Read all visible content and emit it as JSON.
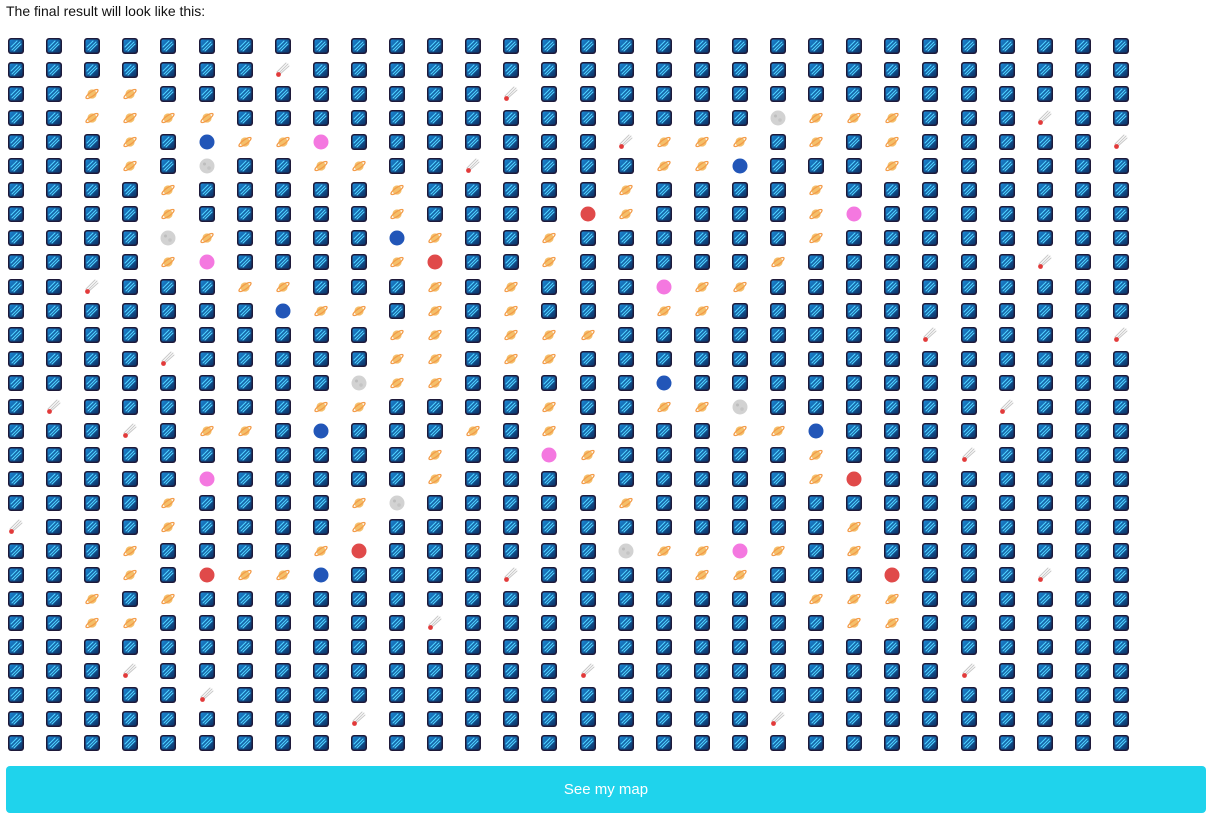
{
  "intro_text": "The final result will look like this:",
  "button_label": "See my map",
  "grid": {
    "columns": 30,
    "rows": 30,
    "default_tile": "space-tile",
    "legend": {
      "S": "space-tile",
      "P": "ringed-planet",
      "G": "moon",
      "K": "pink-planet",
      "B": "blue-planet",
      "R": "red-planet",
      "C": "comet"
    },
    "rows_data": [
      "SSSSSSSSSSSSSSSSSSSSSSSSSSSSSS",
      "SSSSSSSCSSSSSSSSSSSSSSSSSSSSSS",
      "SSPPSSSSSSSSSCSSSSSSSSSSSSSSSS",
      "SSPPPPSSSSSSSSSSSSSSGPPPSSSCSS",
      "SSSPSBPPKSSSSSSSCPPPSPSPSSSSSC",
      "SSSPSGSSPPSSCSSSSPPBSSSPSSSSSS",
      "SSSSPSSSSSPSSSSSPSSSSPSSSSSSSS",
      "SSSSPSSSSSPSSSSRPSSSSPKSSSSSSS",
      "SSSSGPSSSSBPSSPSSSSSSPSSSSSSSS",
      "SSSSPKSSSSPRSSPSSSSSPSSSSSSCSS",
      "SSCSSSPPSSSPSPSSSKPPSSSSSSSSSS",
      "SSSSSSSBPPSPSPSSSPPSSSSSSSSSSS",
      "SSSSSSSSSSPPSPPPSSSSSSSSCSSSSC",
      "SSSSCSSSSSPPSPPSSSSSSSSSSSSSSS",
      "SSSSSSSSSGPPSSSSSBSSSSSSSSSSSS",
      "SCSSSSSSPPSSSSPSSPPGSSSSSSCSSS",
      "SSSCSPPSBSSSPSPSSSSPPBSSSSSSSS",
      "SSSSSSSSSSSPSSKPSSSSSPSSSCSSSS",
      "SSSSSKSSSSSPSSSPSSSSSPRSSSSSSS",
      "SSSSPSSSSPGSSSSSPSSSSSSSSSSSSS",
      "CSSSPSSSSPSSSSSSSSSSSSPSSSSSSS",
      "SSSPSSSSPRSSSSSSGPPKPSPSSSSSSS",
      "SSSPSRPPBSSSSCSSSSPPSSSRSSSCSS",
      "SSPSPSSSSSSSSSSSSSSSSPPPSSSSSS",
      "SSPPSSSSSSSCSSSSSSSSSSPPSSSSSS",
      "SSSSSSSSSSSSSSSSSSSSSSSSSSSSSS",
      "SSSCSSSSSSSSSSSCSSSSSSSSSCSSSS",
      "SSSSSCSSSSSSSSSSSSSSSSSSSSSSSS",
      "SSSSSSSSSCSSSSSSSSSSCSSSSSSSSS",
      "SSSSSSSSSSSSSSSSSSSSSSSSSSSSSS"
    ]
  }
}
